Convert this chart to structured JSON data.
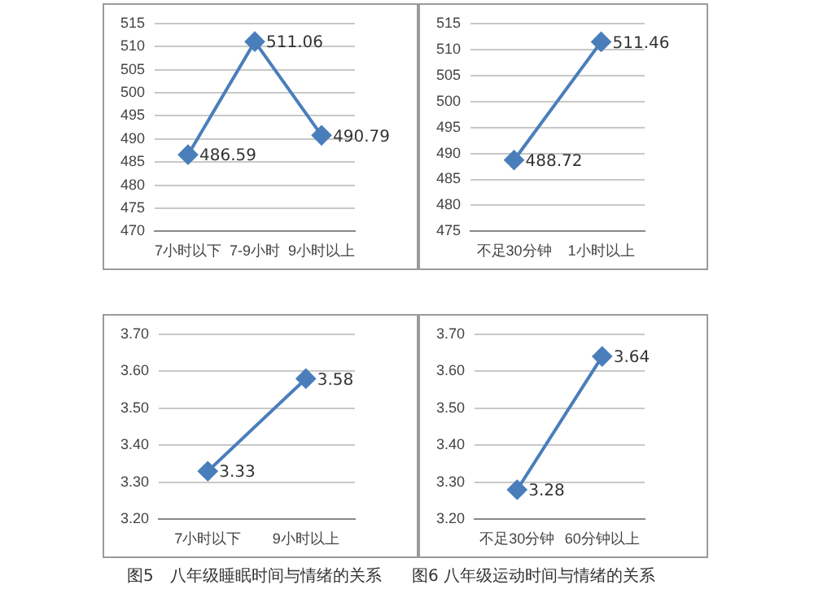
{
  "chart_data": [
    {
      "type": "line",
      "categories": [
        "7小时以下",
        "7-9小时",
        "9小时以上"
      ],
      "series": [
        {
          "color": "#4a7ebb",
          "values": [
            486.59,
            511.06,
            490.79
          ]
        }
      ],
      "ylim": [
        470,
        515
      ],
      "yticks": [
        470,
        475,
        480,
        485,
        490,
        495,
        500,
        505,
        510,
        515
      ],
      "grid": "y",
      "marker": "diamond",
      "data_labels": true,
      "legend": false
    },
    {
      "type": "line",
      "categories": [
        "不足30分钟",
        "1小时以上"
      ],
      "series": [
        {
          "color": "#4a7ebb",
          "values": [
            488.72,
            511.46
          ]
        }
      ],
      "ylim": [
        475,
        515
      ],
      "yticks": [
        475,
        480,
        485,
        490,
        495,
        500,
        505,
        510,
        515
      ],
      "grid": "y",
      "marker": "diamond",
      "data_labels": true,
      "legend": false
    },
    {
      "type": "line",
      "categories": [
        "7小时以下",
        "9小时以上"
      ],
      "series": [
        {
          "color": "#4a7ebb",
          "values": [
            3.33,
            3.58
          ]
        }
      ],
      "ylim": [
        3.2,
        3.7
      ],
      "yticks": [
        {
          "value": 3.2,
          "label": "3.20"
        },
        {
          "value": 3.3,
          "label": "3.30"
        },
        {
          "value": 3.4,
          "label": "3.40"
        },
        {
          "value": 3.5,
          "label": "3.50"
        },
        {
          "value": 3.6,
          "label": "3.60"
        },
        {
          "value": 3.7,
          "label": "3.70"
        }
      ],
      "grid": "y",
      "marker": "diamond",
      "data_labels": true,
      "legend": false,
      "annotations": [
        "图5　八年级睡眠时间与情绪的关系"
      ]
    },
    {
      "type": "line",
      "categories": [
        "不足30分钟",
        "60分钟以上"
      ],
      "series": [
        {
          "color": "#4a7ebb",
          "values": [
            3.28,
            3.64
          ]
        }
      ],
      "ylim": [
        3.2,
        3.7
      ],
      "yticks": [
        {
          "value": 3.2,
          "label": "3.20"
        },
        {
          "value": 3.3,
          "label": "3.30"
        },
        {
          "value": 3.4,
          "label": "3.40"
        },
        {
          "value": 3.5,
          "label": "3.50"
        },
        {
          "value": 3.6,
          "label": "3.60"
        },
        {
          "value": 3.7,
          "label": "3.70"
        }
      ],
      "grid": "y",
      "marker": "diamond",
      "data_labels": true,
      "legend": false,
      "annotations": [
        "图6 八年级运动时间与情绪的关系"
      ]
    }
  ]
}
